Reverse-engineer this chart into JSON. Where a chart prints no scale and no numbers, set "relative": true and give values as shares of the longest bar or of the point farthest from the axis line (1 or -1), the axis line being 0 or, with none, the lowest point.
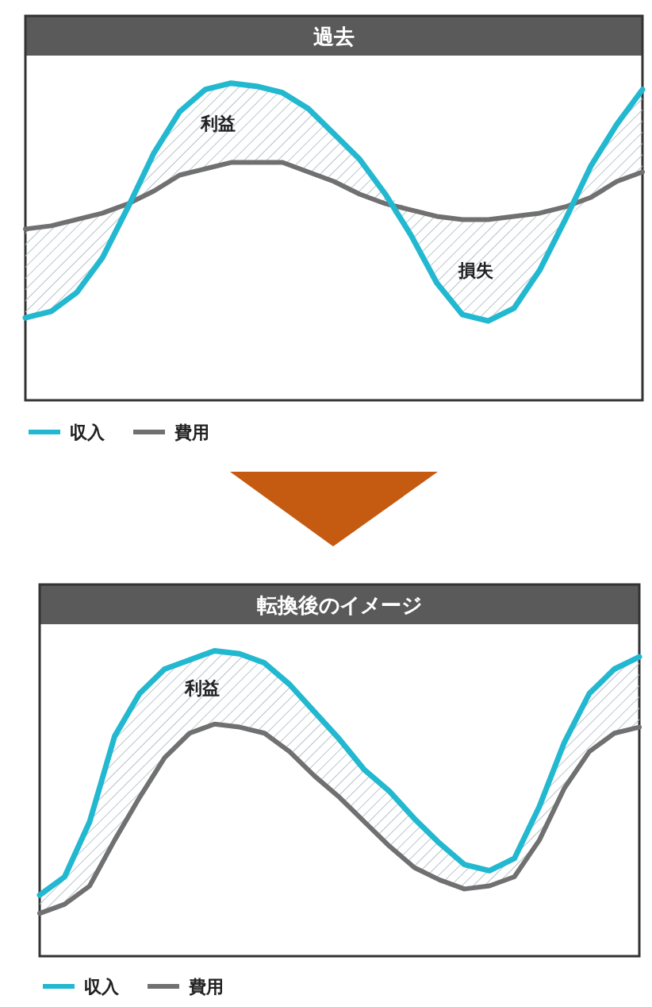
{
  "chart_data": [
    {
      "type": "line",
      "title": "過去",
      "relative": true,
      "legend": "bottom left",
      "categories": [
        null,
        null,
        null,
        null,
        null,
        null,
        null,
        null,
        null,
        null,
        null,
        null,
        null,
        null,
        null,
        null,
        null,
        null,
        null,
        null,
        null,
        null,
        null,
        null,
        null
      ],
      "series": [
        {
          "name": "収入",
          "color": "#22b8d0",
          "values": [
            0.26,
            0.28,
            0.34,
            0.45,
            0.61,
            0.78,
            0.91,
            0.98,
            1,
            0.99,
            0.97,
            0.92,
            0.84,
            0.76,
            0.65,
            0.52,
            0.37,
            0.27,
            0.25,
            0.29,
            0.41,
            0.57,
            0.74,
            0.87,
            0.98
          ],
          "lower": [
            0.26,
            0.28,
            0.34,
            0.45,
            0.61,
            0.66,
            0.71,
            0.73,
            0.75,
            0.75,
            0.75,
            0.72,
            0.69,
            0.65,
            0.62,
            0.52,
            0.37,
            0.27,
            0.25,
            0.29,
            0.41,
            0.57,
            0.64,
            0.69,
            0.72
          ],
          "upper": [
            0.54,
            0.55,
            0.57,
            0.59,
            0.62,
            0.78,
            0.91,
            0.98,
            1,
            0.99,
            0.97,
            0.92,
            0.84,
            0.76,
            0.65,
            0.6,
            0.58,
            0.57,
            0.57,
            0.58,
            0.59,
            0.61,
            0.74,
            0.87,
            0.98
          ]
        },
        {
          "name": "費用",
          "color": "#707070",
          "values": [
            0.54,
            0.55,
            0.57,
            0.59,
            0.62,
            0.66,
            0.71,
            0.73,
            0.75,
            0.75,
            0.75,
            0.72,
            0.69,
            0.65,
            0.62,
            0.6,
            0.58,
            0.57,
            0.57,
            0.58,
            0.59,
            0.61,
            0.64,
            0.69,
            0.72
          ]
        }
      ],
      "annotations": [
        "利益",
        "損失"
      ]
    },
    {
      "type": "line",
      "title": "転換後のイメージ",
      "relative": true,
      "legend": "bottom left",
      "categories": [
        null,
        null,
        null,
        null,
        null,
        null,
        null,
        null,
        null,
        null,
        null,
        null,
        null,
        null,
        null,
        null,
        null,
        null,
        null,
        null,
        null,
        null,
        null,
        null,
        null
      ],
      "series": [
        {
          "name": "収入",
          "color": "#22b8d0",
          "values": [
            0.2,
            0.26,
            0.44,
            0.72,
            0.86,
            0.94,
            0.97,
            1,
            0.99,
            0.96,
            0.89,
            0.8,
            0.71,
            0.61,
            0.54,
            0.45,
            0.37,
            0.3,
            0.28,
            0.32,
            0.49,
            0.7,
            0.86,
            0.94,
            0.98
          ],
          "lower": [
            0.14,
            0.17,
            0.23,
            0.38,
            0.52,
            0.65,
            0.73,
            0.76,
            0.75,
            0.73,
            0.67,
            0.59,
            0.52,
            0.44,
            0.36,
            0.29,
            0.25,
            0.22,
            0.23,
            0.26,
            0.38,
            0.55,
            0.67,
            0.73,
            0.75
          ],
          "upper": [
            0.2,
            0.26,
            0.44,
            0.72,
            0.86,
            0.94,
            0.97,
            1,
            0.99,
            0.96,
            0.89,
            0.8,
            0.71,
            0.61,
            0.54,
            0.45,
            0.37,
            0.3,
            0.28,
            0.32,
            0.49,
            0.7,
            0.86,
            0.94,
            0.98
          ]
        },
        {
          "name": "費用",
          "color": "#707070",
          "values": [
            0.14,
            0.17,
            0.23,
            0.38,
            0.52,
            0.65,
            0.73,
            0.76,
            0.75,
            0.73,
            0.67,
            0.59,
            0.52,
            0.44,
            0.36,
            0.29,
            0.25,
            0.22,
            0.23,
            0.26,
            0.38,
            0.55,
            0.67,
            0.73,
            0.75
          ]
        }
      ],
      "annotations": [
        "利益"
      ]
    }
  ]
}
